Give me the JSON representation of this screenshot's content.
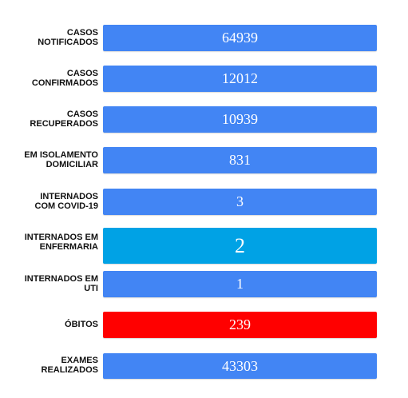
{
  "colors": {
    "blue": "#4285f4",
    "cyan": "#00a2e5",
    "red": "#ff0000"
  },
  "rows": [
    {
      "label": "CASOS\nNOTIFICADOS",
      "value": "64939",
      "color": "#4285f4"
    },
    {
      "label": "CASOS\nCONFIRMADOS",
      "value": "12012",
      "color": "#4285f4"
    },
    {
      "label": "CASOS\nRECUPERADOS",
      "value": "10939",
      "color": "#4285f4"
    },
    {
      "label": "EM ISOLAMENTO\nDOMICILIAR",
      "value": "831",
      "color": "#4285f4"
    },
    {
      "label": "INTERNADOS\nCOM COVID-19",
      "value": "3",
      "color": "#4285f4"
    },
    {
      "label": "INTERNADOS EM\nENFERMARIA",
      "value": "2",
      "color": "#00a2e5"
    },
    {
      "label": "INTERNADOS EM\nUTI",
      "value": "1",
      "color": "#4285f4"
    },
    {
      "label": "ÓBITOS",
      "value": "239",
      "color": "#ff0000"
    },
    {
      "label": "EXAMES\nREALIZADOS",
      "value": "43303",
      "color": "#4285f4"
    }
  ]
}
